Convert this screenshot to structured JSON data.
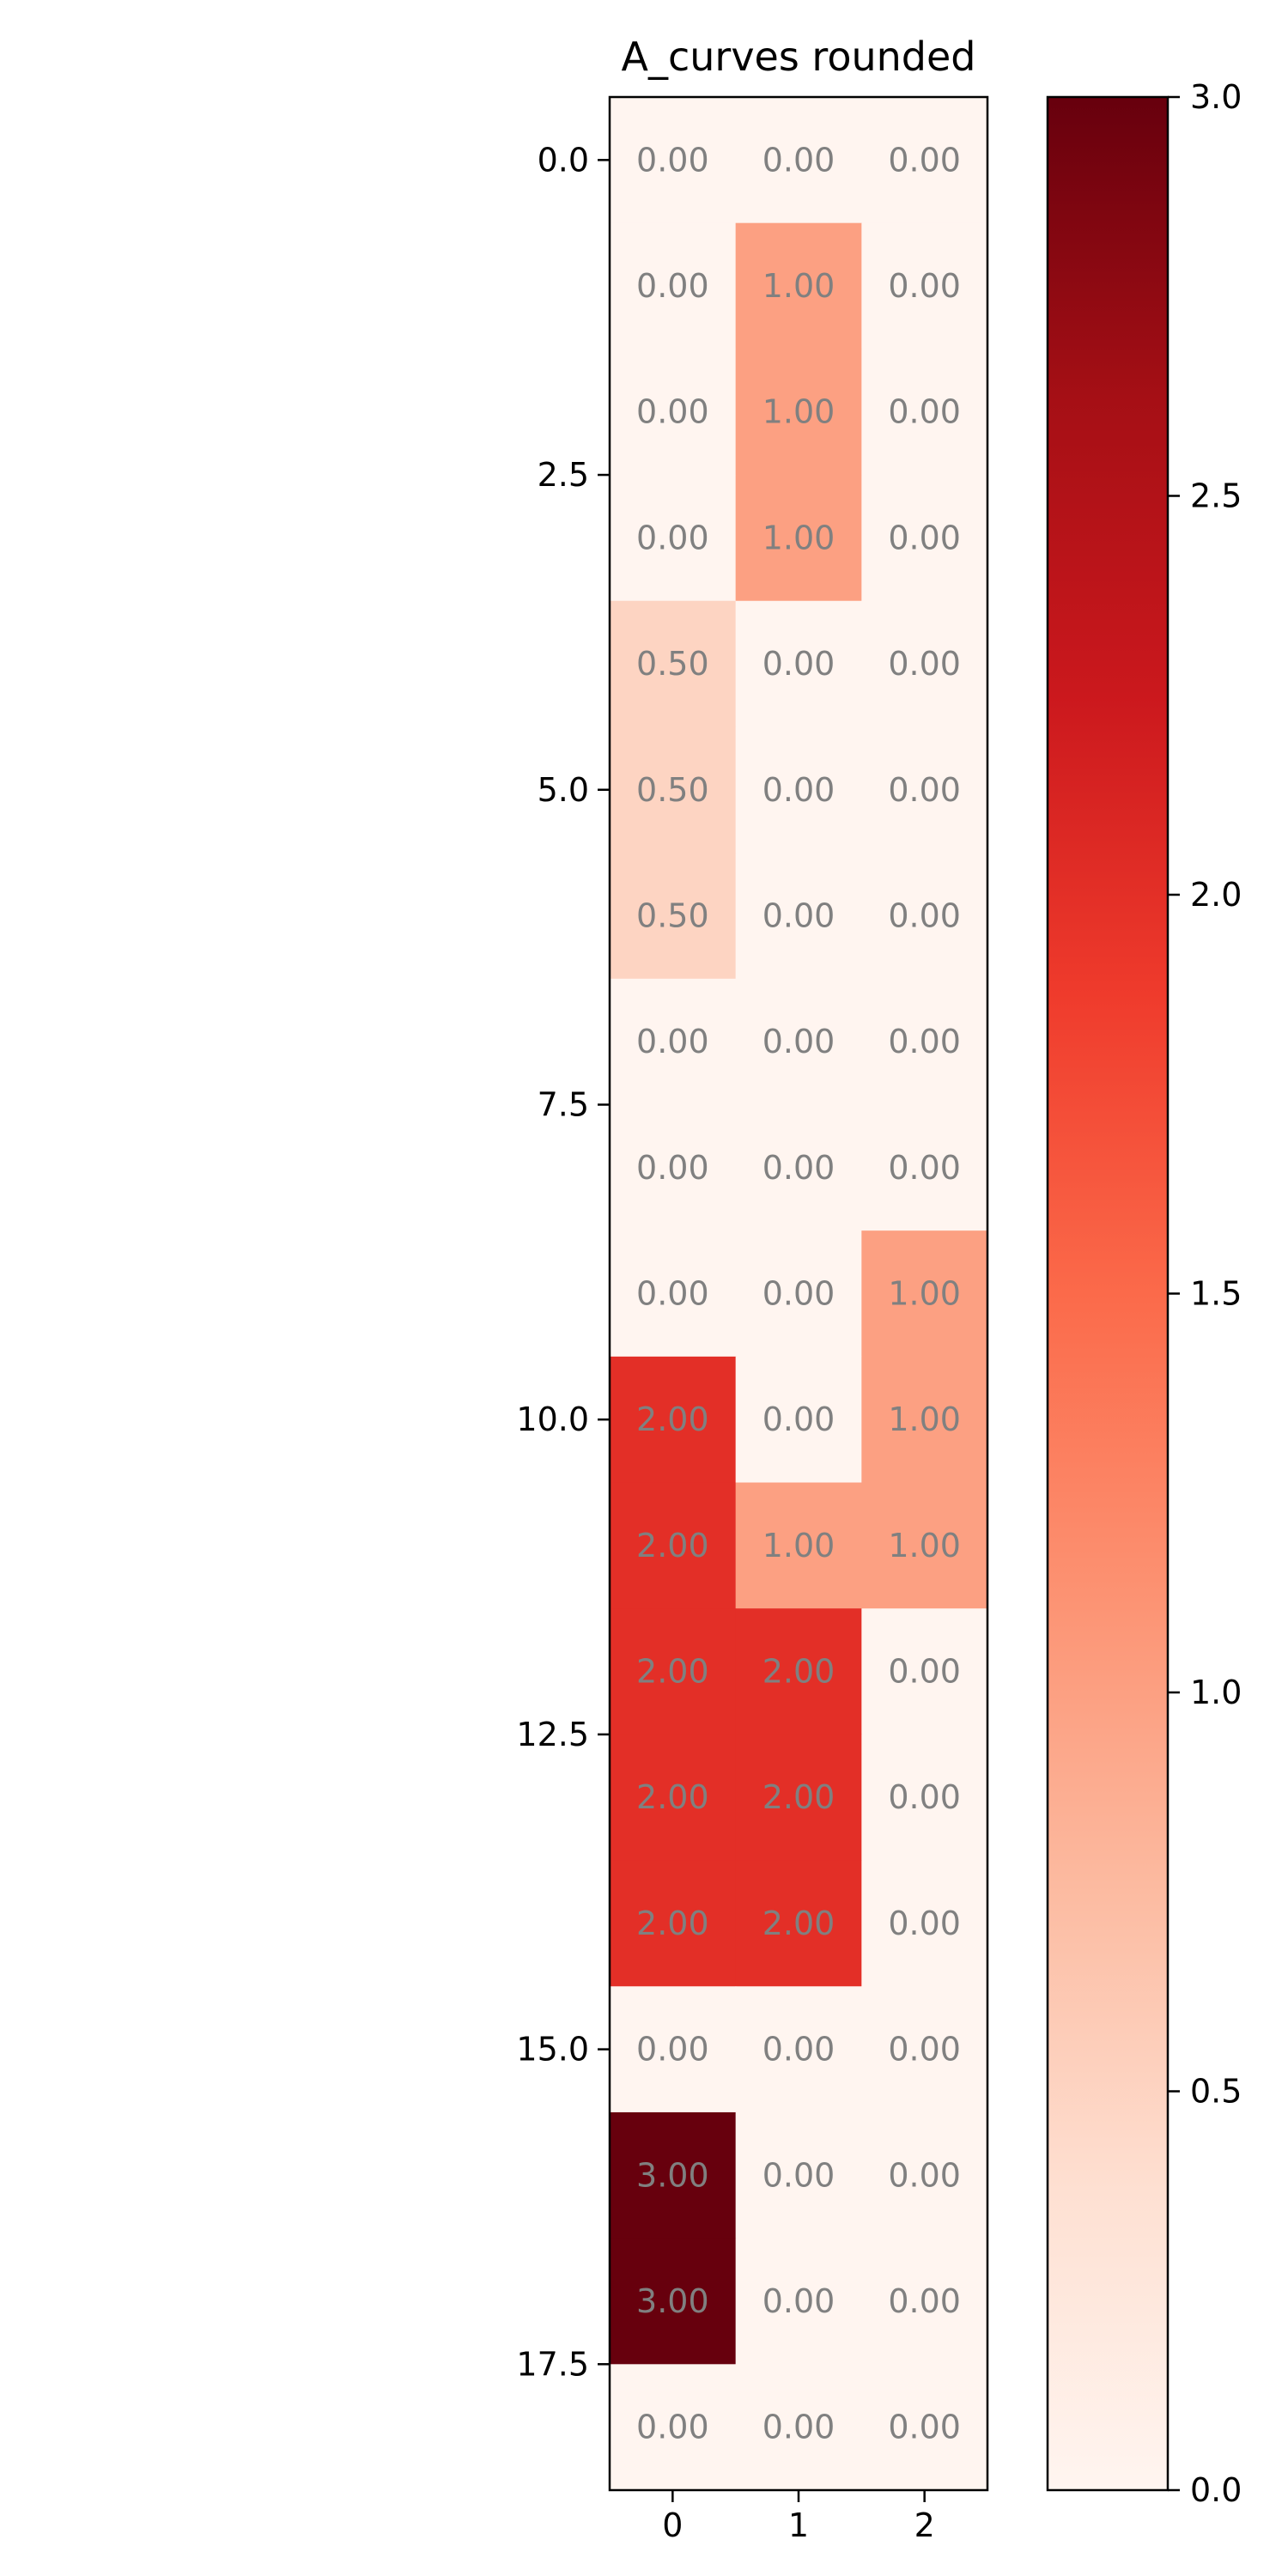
{
  "chart_data": {
    "type": "heatmap",
    "title": "A_curves rounded",
    "colormap": "Reds",
    "color_min": "#fff5f0",
    "color_max": "#67000d",
    "cell_text_color": "#808080",
    "x": [
      0,
      1,
      2
    ],
    "y": [
      0,
      1,
      2,
      3,
      4,
      5,
      6,
      7,
      8,
      9,
      10,
      11,
      12,
      13,
      14,
      15,
      16,
      17,
      18
    ],
    "values": [
      [
        0,
        0,
        0
      ],
      [
        0,
        1,
        0
      ],
      [
        0,
        1,
        0
      ],
      [
        0,
        1,
        0
      ],
      [
        0.5,
        0,
        0
      ],
      [
        0.5,
        0,
        0
      ],
      [
        0.5,
        0,
        0
      ],
      [
        0,
        0,
        0
      ],
      [
        0,
        0,
        0
      ],
      [
        0,
        0,
        1
      ],
      [
        2,
        0,
        1
      ],
      [
        2,
        1,
        1
      ],
      [
        2,
        2,
        0
      ],
      [
        2,
        2,
        0
      ],
      [
        2,
        2,
        0
      ],
      [
        0,
        0,
        0
      ],
      [
        3,
        0,
        0
      ],
      [
        3,
        0,
        0
      ],
      [
        0,
        0,
        0
      ]
    ],
    "cell_labels": [
      [
        "0.00",
        "0.00",
        "0.00"
      ],
      [
        "0.00",
        "1.00",
        "0.00"
      ],
      [
        "0.00",
        "1.00",
        "0.00"
      ],
      [
        "0.00",
        "1.00",
        "0.00"
      ],
      [
        "0.50",
        "0.00",
        "0.00"
      ],
      [
        "0.50",
        "0.00",
        "0.00"
      ],
      [
        "0.50",
        "0.00",
        "0.00"
      ],
      [
        "0.00",
        "0.00",
        "0.00"
      ],
      [
        "0.00",
        "0.00",
        "0.00"
      ],
      [
        "0.00",
        "0.00",
        "1.00"
      ],
      [
        "2.00",
        "0.00",
        "1.00"
      ],
      [
        "2.00",
        "1.00",
        "1.00"
      ],
      [
        "2.00",
        "2.00",
        "0.00"
      ],
      [
        "2.00",
        "2.00",
        "0.00"
      ],
      [
        "2.00",
        "2.00",
        "0.00"
      ],
      [
        "0.00",
        "0.00",
        "0.00"
      ],
      [
        "3.00",
        "0.00",
        "0.00"
      ],
      [
        "3.00",
        "0.00",
        "0.00"
      ],
      [
        "0.00",
        "0.00",
        "0.00"
      ]
    ],
    "xlim": [
      -0.5,
      2.5
    ],
    "ylim": [
      18.5,
      -0.5
    ],
    "x_ticks": [
      0,
      1,
      2
    ],
    "x_tick_labels": [
      "0",
      "1",
      "2"
    ],
    "y_ticks": [
      0,
      2.5,
      5,
      7.5,
      10,
      12.5,
      15,
      17.5
    ],
    "y_tick_labels": [
      "0.0",
      "2.5",
      "5.0",
      "7.5",
      "10.0",
      "12.5",
      "15.0",
      "17.5"
    ],
    "colorbar": {
      "range": [
        0,
        3
      ],
      "ticks": [
        0,
        0.5,
        1,
        1.5,
        2,
        2.5,
        3
      ],
      "tick_labels": [
        "0.0",
        "0.5",
        "1.0",
        "1.5",
        "2.0",
        "2.5",
        "3.0"
      ]
    },
    "grid": false,
    "xlabel": "",
    "ylabel": ""
  }
}
